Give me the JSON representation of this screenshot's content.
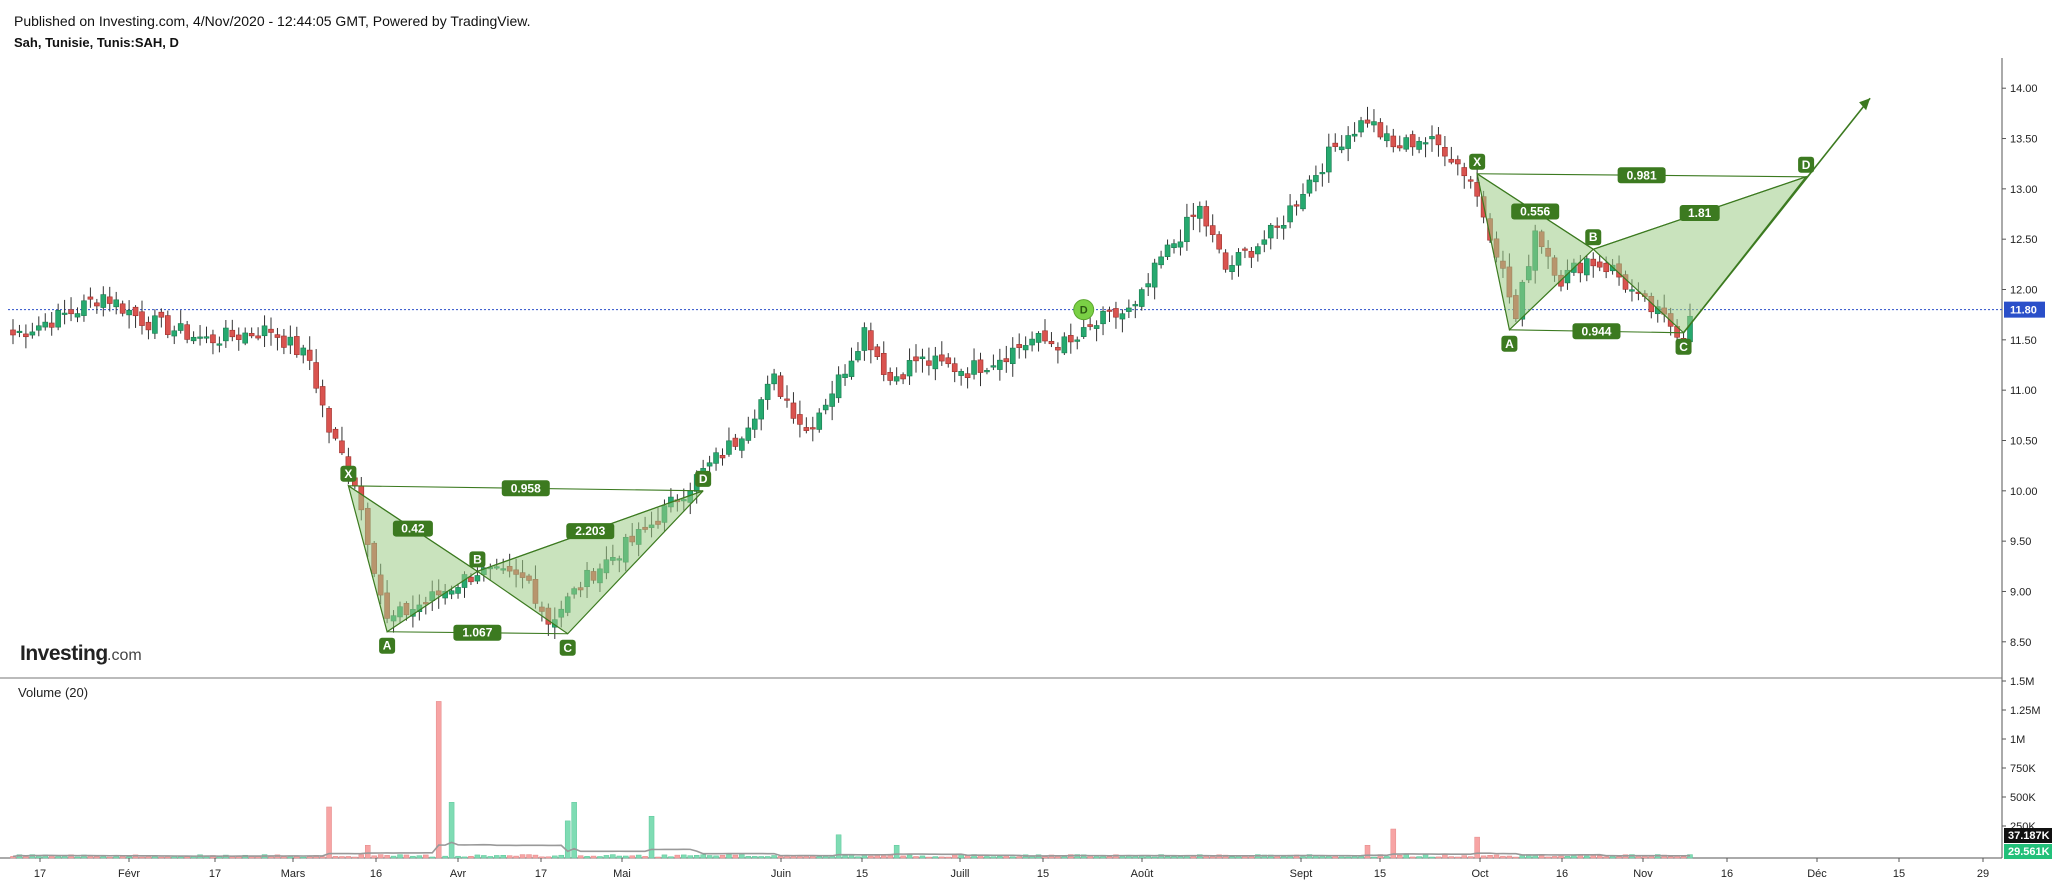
{
  "header": {
    "published": "Published on Investing.com, 4/Nov/2020 - 12:44:05 GMT, Powered by TradingView.",
    "symbol": "Sah, Tunisie, Tunis:SAH, D"
  },
  "watermark": {
    "brand": "Investing",
    "suffix": ".com"
  },
  "colors": {
    "up": "#26a96f",
    "down": "#d9534f",
    "upVol": "#7fdcb4",
    "downVol": "#f7a4a4",
    "pattern": "#3c7a20",
    "patternFill": "#9ccc86",
    "priceLine": "#2a4fc9"
  },
  "chart_data": [
    {
      "type": "candlestick",
      "title": "Sah, Tunisie, Tunis:SAH, D",
      "ylim": [
        8.2,
        14.3
      ],
      "y_ticks": [
        "14.00",
        "13.50",
        "13.00",
        "12.50",
        "12.00",
        "11.50",
        "11.00",
        "10.50",
        "10.00",
        "9.50",
        "9.00",
        "8.50"
      ],
      "x_ticks": [
        "17",
        "Févr",
        "17",
        "Mars",
        "16",
        "Avr",
        "17",
        "Mai",
        "Juin",
        "15",
        "Juill",
        "15",
        "Août",
        "Sept",
        "15",
        "Oct",
        "16",
        "Nov",
        "16",
        "Déc",
        "15",
        "29"
      ],
      "last_price": "11.80",
      "close_anchors": [
        {
          "day": 0,
          "c": 11.55
        },
        {
          "day": 10,
          "c": 11.8
        },
        {
          "day": 14,
          "c": 11.95
        },
        {
          "day": 20,
          "c": 11.7
        },
        {
          "day": 30,
          "c": 11.5
        },
        {
          "day": 40,
          "c": 11.6
        },
        {
          "day": 46,
          "c": 11.3
        },
        {
          "day": 49,
          "c": 10.6
        },
        {
          "day": 53,
          "c": 10.1
        },
        {
          "day": 58,
          "c": 8.7
        },
        {
          "day": 64,
          "c": 8.9
        },
        {
          "day": 72,
          "c": 9.2
        },
        {
          "day": 80,
          "c": 9.1
        },
        {
          "day": 83,
          "c": 8.7
        },
        {
          "day": 90,
          "c": 9.2
        },
        {
          "day": 98,
          "c": 9.6
        },
        {
          "day": 104,
          "c": 10.0
        },
        {
          "day": 112,
          "c": 10.5
        },
        {
          "day": 118,
          "c": 11.1
        },
        {
          "day": 123,
          "c": 10.6
        },
        {
          "day": 128,
          "c": 11.1
        },
        {
          "day": 132,
          "c": 11.6
        },
        {
          "day": 136,
          "c": 11.1
        },
        {
          "day": 140,
          "c": 11.3
        },
        {
          "day": 148,
          "c": 11.2
        },
        {
          "day": 152,
          "c": 11.3
        },
        {
          "day": 158,
          "c": 11.5
        },
        {
          "day": 164,
          "c": 11.45
        },
        {
          "day": 169,
          "c": 11.7
        },
        {
          "day": 174,
          "c": 11.8
        },
        {
          "day": 178,
          "c": 12.3
        },
        {
          "day": 184,
          "c": 12.8
        },
        {
          "day": 188,
          "c": 12.2
        },
        {
          "day": 196,
          "c": 12.6
        },
        {
          "day": 200,
          "c": 13.0
        },
        {
          "day": 206,
          "c": 13.5
        },
        {
          "day": 210,
          "c": 13.7
        },
        {
          "day": 214,
          "c": 13.4
        },
        {
          "day": 218,
          "c": 13.5
        },
        {
          "day": 222,
          "c": 13.4
        },
        {
          "day": 226,
          "c": 13.1
        },
        {
          "day": 230,
          "c": 12.4
        },
        {
          "day": 233,
          "c": 11.7
        },
        {
          "day": 236,
          "c": 12.6
        },
        {
          "day": 240,
          "c": 12.1
        },
        {
          "day": 244,
          "c": 12.3
        },
        {
          "day": 248,
          "c": 12.2
        },
        {
          "day": 252,
          "c": 11.9
        },
        {
          "day": 256,
          "c": 11.7
        },
        {
          "day": 259,
          "c": 11.55
        },
        {
          "day": 260,
          "c": 11.8
        }
      ],
      "patterns": [
        {
          "name": "XABCD",
          "points": [
            {
              "label": "X",
              "day": 52,
              "price": 10.05
            },
            {
              "label": "A",
              "day": 58,
              "price": 8.6
            },
            {
              "label": "B",
              "day": 72,
              "price": 9.2
            },
            {
              "label": "C",
              "day": 86,
              "price": 8.58
            },
            {
              "label": "D",
              "day": 107,
              "price": 10.0
            }
          ],
          "ratios": [
            "0.958",
            "0.42",
            "2.203",
            "1.067"
          ]
        },
        {
          "name": "XABCD",
          "points": [
            {
              "label": "X",
              "day": 227,
              "price": 13.15
            },
            {
              "label": "A",
              "day": 232,
              "price": 11.6
            },
            {
              "label": "B",
              "day": 245,
              "price": 12.4
            },
            {
              "label": "C",
              "day": 259,
              "price": 11.57
            },
            {
              "label": "D",
              "day": 278,
              "price": 13.12
            }
          ],
          "ratios": [
            "0.981",
            "0.556",
            "1.81",
            "0.944"
          ]
        }
      ],
      "marker": {
        "label": "D",
        "day": 166,
        "price": 11.8
      }
    },
    {
      "type": "bar",
      "title": "Volume (20)",
      "y_ticks": [
        "1.5M",
        "1.25M",
        "1M",
        "750K",
        "500K",
        "250K"
      ],
      "last_volume": "37.187K",
      "avg_volume": "29.561K",
      "spikes": [
        {
          "day": 49,
          "v": 440000
        },
        {
          "day": 55,
          "v": 110000
        },
        {
          "day": 66,
          "v": 1350000
        },
        {
          "day": 68,
          "v": 480000
        },
        {
          "day": 86,
          "v": 320000
        },
        {
          "day": 87,
          "v": 480000
        },
        {
          "day": 99,
          "v": 360000
        },
        {
          "day": 128,
          "v": 200000
        },
        {
          "day": 137,
          "v": 110000
        },
        {
          "day": 210,
          "v": 110000
        },
        {
          "day": 214,
          "v": 250000
        },
        {
          "day": 227,
          "v": 180000
        }
      ]
    }
  ]
}
